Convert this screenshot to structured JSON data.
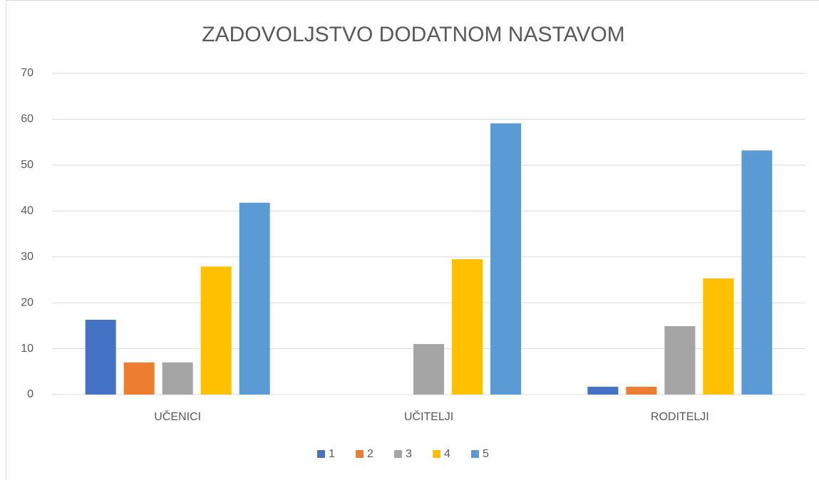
{
  "chart_data": {
    "type": "bar",
    "title": "ZADOVOLJSTVO DODATNOM NASTAVOM",
    "categories": [
      "UČENICI",
      "UČITELJI",
      "RODITELJI"
    ],
    "series": [
      {
        "name": "1",
        "color": "#4472c4",
        "values": [
          16.3,
          0,
          1.7
        ]
      },
      {
        "name": "2",
        "color": "#ed7d31",
        "values": [
          7.0,
          0,
          1.7
        ]
      },
      {
        "name": "3",
        "color": "#a5a5a5",
        "values": [
          7.0,
          11.0,
          14.9
        ]
      },
      {
        "name": "4",
        "color": "#ffc000",
        "values": [
          27.9,
          29.5,
          25.3
        ]
      },
      {
        "name": "5",
        "color": "#5b9bd5",
        "values": [
          41.8,
          59.1,
          53.2
        ]
      }
    ],
    "ylim": [
      0,
      70
    ],
    "yticks": [
      0,
      10,
      20,
      30,
      40,
      50,
      60,
      70
    ],
    "grid": true,
    "legend": "bottom"
  }
}
